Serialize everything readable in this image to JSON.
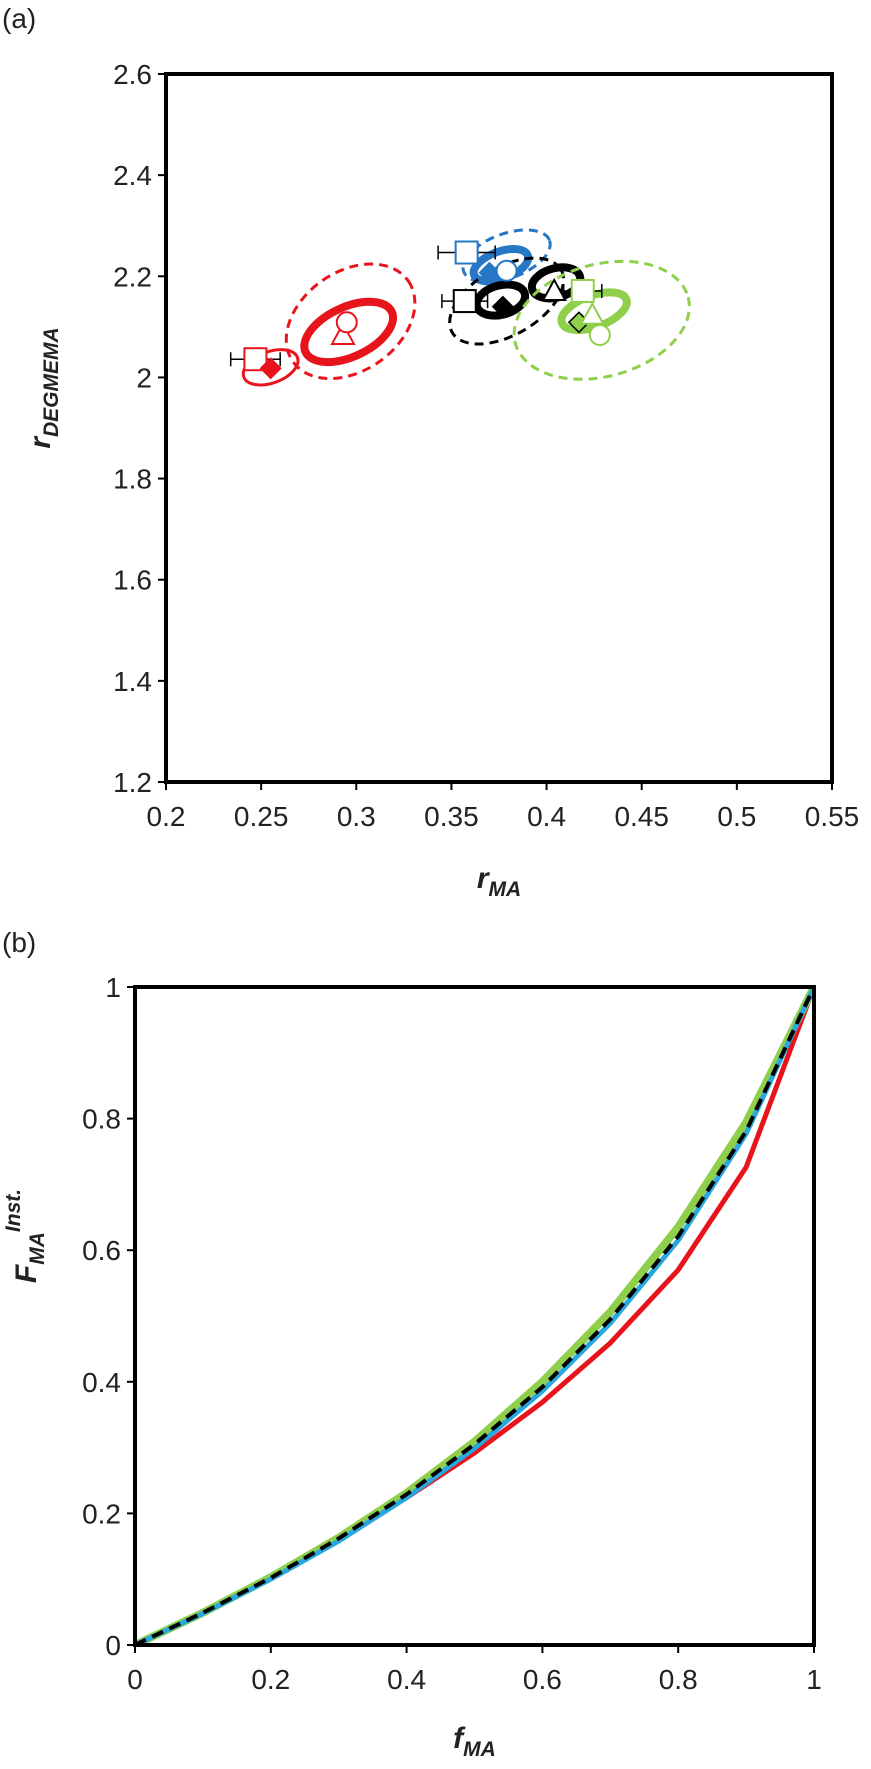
{
  "chart_data": [
    {
      "type": "scatter",
      "panel_label": "(a)",
      "xlabel": "r",
      "xlabel_sub": "MA",
      "ylabel": "r",
      "ylabel_sub": "DEGMEMA",
      "xlim": [
        0.2,
        0.55
      ],
      "xticks": [
        0.2,
        0.25,
        0.3,
        0.35,
        0.4,
        0.45,
        0.5,
        0.55
      ],
      "ylim": [
        1.2,
        2.6
      ],
      "yticks": [
        1.2,
        1.4,
        1.6,
        1.8,
        2,
        2.2,
        2.4,
        2.6
      ],
      "series": [
        {
          "color": "#e8141b",
          "ellipses": [
            {
              "style": "dashed",
              "cx": 0.297,
              "cy": 2.111,
              "rx": 0.037,
              "ry": 0.098,
              "angle": 35
            },
            {
              "style": "thick",
              "cx": 0.296,
              "cy": 2.09,
              "rx": 0.025,
              "ry": 0.049,
              "angle": 25
            },
            {
              "style": "thin",
              "cx": 0.255,
              "cy": 2.02,
              "rx": 0.015,
              "ry": 0.031,
              "angle": 20
            }
          ],
          "points": [
            {
              "marker": "square",
              "x": 0.247,
              "y": 2.036,
              "xerr": 0.013
            },
            {
              "marker": "diamond",
              "x": 0.255,
              "y": 2.018
            },
            {
              "marker": "triangle",
              "x": 0.293,
              "y": 2.084
            },
            {
              "marker": "circle",
              "x": 0.295,
              "y": 2.109
            }
          ]
        },
        {
          "color": "#2677c6",
          "ellipses": [
            {
              "style": "dashed",
              "cx": 0.379,
              "cy": 2.24,
              "rx": 0.024,
              "ry": 0.044,
              "angle": 20
            },
            {
              "style": "thick",
              "cx": 0.376,
              "cy": 2.222,
              "rx": 0.015,
              "ry": 0.027,
              "angle": 20
            }
          ],
          "points": [
            {
              "marker": "square",
              "x": 0.358,
              "y": 2.247,
              "xerr": 0.015
            },
            {
              "marker": "diamond",
              "x": 0.37,
              "y": 2.207
            },
            {
              "marker": "circle",
              "x": 0.379,
              "y": 2.211
            }
          ]
        },
        {
          "color": "#000000",
          "ellipses": [
            {
              "style": "dashed",
              "cx": 0.379,
              "cy": 2.151,
              "rx": 0.033,
              "ry": 0.067,
              "angle": 30
            },
            {
              "style": "thick",
              "cx": 0.376,
              "cy": 2.153,
              "rx": 0.013,
              "ry": 0.029,
              "angle": 15
            },
            {
              "style": "thick",
              "cx": 0.405,
              "cy": 2.187,
              "rx": 0.013,
              "ry": 0.029,
              "angle": 15
            }
          ],
          "points": [
            {
              "marker": "square",
              "x": 0.357,
              "y": 2.151,
              "xerr": 0.012
            },
            {
              "marker": "diamond",
              "x": 0.377,
              "y": 2.14
            },
            {
              "marker": "triangle",
              "x": 0.404,
              "y": 2.171
            }
          ]
        },
        {
          "color": "#8fcf4c",
          "ellipses": [
            {
              "style": "dashed",
              "cx": 0.429,
              "cy": 2.113,
              "rx": 0.047,
              "ry": 0.111,
              "angle": 15
            },
            {
              "style": "thick",
              "cx": 0.425,
              "cy": 2.131,
              "rx": 0.018,
              "ry": 0.031,
              "angle": 20
            }
          ],
          "points": [
            {
              "marker": "square",
              "x": 0.419,
              "y": 2.171,
              "xerr": 0.01
            },
            {
              "marker": "diamond",
              "x": 0.417,
              "y": 2.109
            },
            {
              "marker": "triangle",
              "x": 0.424,
              "y": 2.124
            },
            {
              "marker": "circle",
              "x": 0.428,
              "y": 2.084
            }
          ]
        }
      ]
    },
    {
      "type": "line",
      "panel_label": "(b)",
      "xlabel": "f",
      "xlabel_sub": "MA",
      "ylabel": "F",
      "ylabel_sub": "MA",
      "ylabel_sup": "Inst.",
      "xlim": [
        0,
        1
      ],
      "xticks": [
        0,
        0.2,
        0.4,
        0.6,
        0.8,
        1
      ],
      "ylim": [
        0,
        1
      ],
      "yticks": [
        0,
        0.2,
        0.4,
        0.6,
        0.8,
        1
      ],
      "x": [
        0,
        0.1,
        0.2,
        0.3,
        0.4,
        0.5,
        0.6,
        0.7,
        0.8,
        0.9,
        1
      ],
      "series": [
        {
          "color": "#e8141b",
          "line_style": "solid",
          "values": [
            0,
            0.051,
            0.104,
            0.162,
            0.224,
            0.292,
            0.369,
            0.459,
            0.57,
            0.726,
            1
          ]
        },
        {
          "color": "#8fcf4c",
          "line_style": "solid",
          "values": [
            0,
            0.049,
            0.103,
            0.163,
            0.231,
            0.309,
            0.4,
            0.506,
            0.635,
            0.794,
            1
          ]
        },
        {
          "color": "#29a8e0",
          "line_style": "solid",
          "values": [
            0,
            0.048,
            0.1,
            0.158,
            0.224,
            0.299,
            0.386,
            0.489,
            0.615,
            0.777,
            1
          ]
        },
        {
          "color": "#000000",
          "line_style": "dashed",
          "values": [
            0,
            0.049,
            0.102,
            0.162,
            0.229,
            0.305,
            0.392,
            0.495,
            0.621,
            0.781,
            1
          ]
        }
      ]
    }
  ]
}
